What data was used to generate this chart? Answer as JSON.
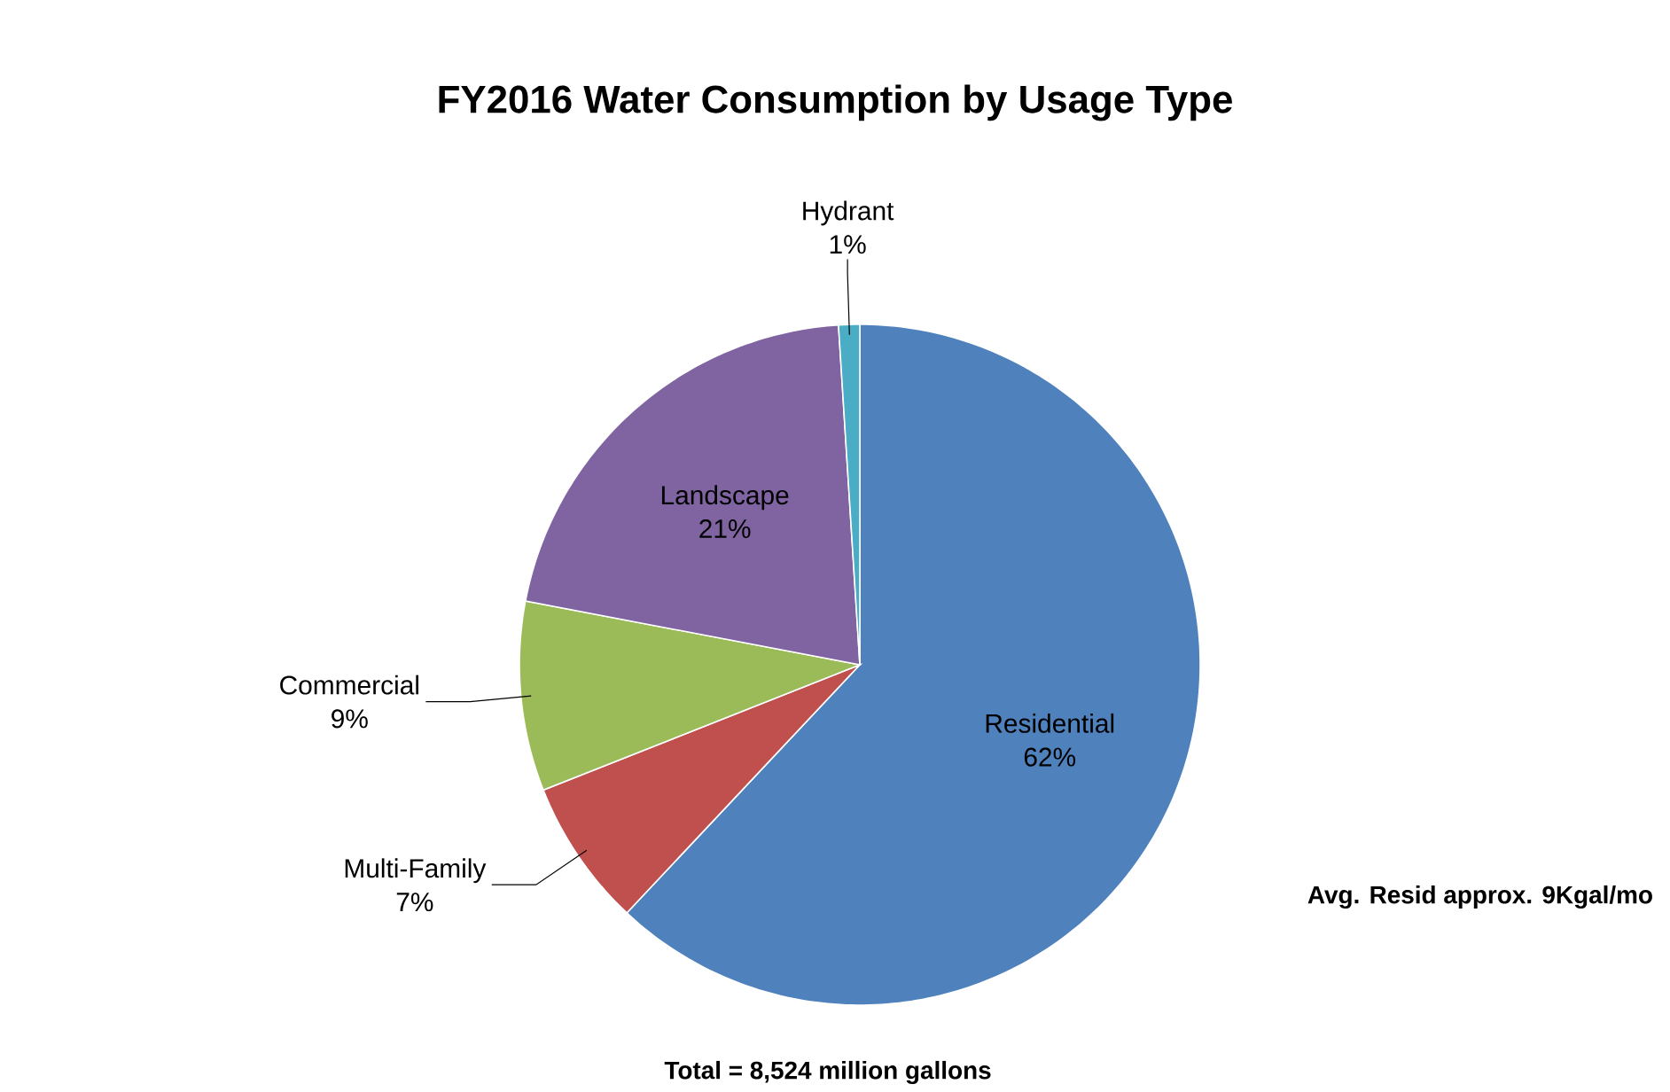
{
  "chart_data": {
    "type": "pie",
    "title": "FY2016 Water Consumption by Usage Type",
    "categories": [
      "Residential",
      "Multi-Family",
      "Commercial",
      "Landscape",
      "Hydrant"
    ],
    "values": [
      62,
      7,
      9,
      21,
      1
    ],
    "value_labels": [
      "62%",
      "7%",
      "9%",
      "21%",
      "1%"
    ],
    "colors": [
      "#4f81bd",
      "#c0504d",
      "#9bbb59",
      "#8064a2",
      "#4bacc6"
    ],
    "annotations": [
      "Avg. Resid approx. 9Kgal/mo",
      "Total = 8,524 million gallons"
    ]
  }
}
